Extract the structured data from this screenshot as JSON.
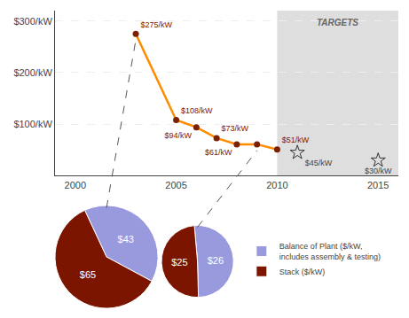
{
  "chart_data": [
    {
      "type": "line",
      "xlim": [
        1999,
        2016
      ],
      "ylim": [
        0,
        320
      ],
      "xticks": [
        2000,
        2005,
        2010,
        2015
      ],
      "yticks": [
        {
          "value": 100,
          "label": "$100/kW"
        },
        {
          "value": 200,
          "label": "$200/kW"
        },
        {
          "value": 300,
          "label": "$300/kW"
        }
      ],
      "grid": "y",
      "data_labels": true,
      "shaded_region": {
        "x": [
          2010,
          2016
        ],
        "color": "#DEDEDE",
        "label": "TARGETS"
      },
      "series": [
        {
          "type": "line",
          "marker": "circle",
          "color": "#FF8C00",
          "colors": [
            "#7B2000",
            "#7B2000",
            "#7B2000",
            "#7B2000",
            "#7B2000",
            "#7B2000",
            "#7B2000"
          ],
          "x": [
            2003,
            2005,
            2006,
            2007,
            2008,
            2009,
            2010
          ],
          "values": [
            275,
            108,
            94,
            73,
            61,
            61,
            51
          ],
          "value_labels": [
            "$275/kW",
            "$108/kW",
            "$94/kW",
            "$73/kW",
            "$61/kW",
            null,
            "$51/kW"
          ]
        },
        {
          "type": "scatter",
          "marker": "star",
          "color": "#333333",
          "x": [
            2011,
            2015
          ],
          "values": [
            45,
            30
          ],
          "value_labels": [
            "$45/kW",
            "$30/kW"
          ]
        }
      ]
    },
    {
      "type": "pie",
      "categories": [
        "Balance of Plant ($/kW,\nincludes assembly & testing)",
        "Stack ($/kW)"
      ],
      "values": [
        43,
        65
      ],
      "value_labels": [
        "$43",
        "$65"
      ],
      "colors": [
        "#9999DD",
        "#7B1500"
      ],
      "legend": "lower right",
      "points_to": [
        2003,
        275
      ]
    },
    {
      "type": "pie",
      "categories": [
        "Balance of Plant ($/kW,\nincludes assembly & testing)",
        "Stack ($/kW)"
      ],
      "values": [
        26,
        25
      ],
      "value_labels": [
        "$26",
        "$25"
      ],
      "colors": [
        "#9999DD",
        "#7B1500"
      ],
      "legend": "lower right",
      "points_to": [
        2009,
        61
      ]
    }
  ]
}
